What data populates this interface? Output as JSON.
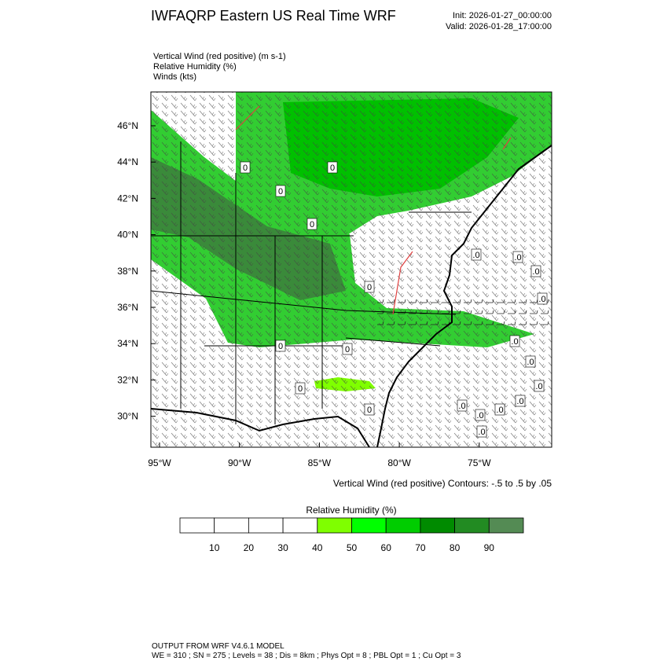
{
  "header": {
    "title": "IWFAQRP Eastern US Real Time WRF",
    "init": "Init: 2026-01-27_00:00:00",
    "valid": "Valid: 2026-01-28_17:00:00"
  },
  "fields": [
    "Vertical Wind (red positive)   (m s-1)",
    "Relative Humidity   (%)",
    "Winds   (kts)"
  ],
  "map": {
    "lat_labels": [
      "46°N",
      "44°N",
      "42°N",
      "40°N",
      "38°N",
      "36°N",
      "34°N",
      "32°N",
      "30°N"
    ],
    "lon_labels": [
      "95°W",
      "90°W",
      "85°W",
      "80°W",
      "75°W"
    ],
    "contour_note": "Vertical Wind (red positive) Contours: -.5 to .5 by .05",
    "contour_labels": [
      "0",
      "0",
      "0",
      "0",
      "0",
      "0",
      "0",
      "0",
      "0",
      ".0",
      ".0",
      ".0",
      ".0",
      ".0",
      ".0",
      ".0",
      ".0",
      ".0",
      ".0",
      ".0",
      ".0"
    ]
  },
  "colorbar": {
    "title": "Relative Humidity  (%)",
    "ticks": [
      10,
      20,
      30,
      40,
      50,
      60,
      70,
      80,
      90
    ],
    "colors": [
      "#ffffff",
      "#ffffff",
      "#ffffff",
      "#ffffff",
      "#7fff00",
      "#00ff00",
      "#00cd00",
      "#008b00",
      "#228b22",
      "#548b54"
    ]
  },
  "footer": {
    "line1": "OUTPUT FROM WRF V4.6.1 MODEL",
    "line2": "WE = 310 ; SN = 275 ; Levels = 38 ; Dis = 8km ; Phys Opt = 8 ; PBL Opt = 1 ; Cu Opt = 3"
  }
}
